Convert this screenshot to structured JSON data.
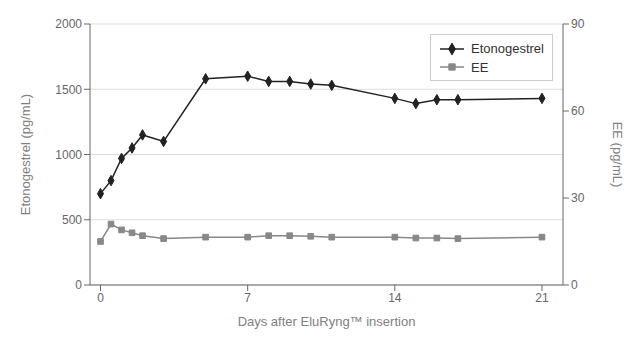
{
  "chart_data": {
    "type": "line",
    "xlabel": "Days after EluRyng™ insertion",
    "ylabel": "Etonogestrel (pg/mL)",
    "y2label": "EE (pg/mL)",
    "x": [
      0,
      0.5,
      1,
      1.5,
      2,
      3,
      5,
      7,
      8,
      9,
      10,
      11,
      14,
      15,
      16,
      17,
      21
    ],
    "series": [
      {
        "name": "Etonogestrel",
        "color": "#222222",
        "marker": "diamond",
        "line_style": "solid",
        "values": [
          700,
          800,
          970,
          1050,
          1150,
          1100,
          1580,
          1600,
          1560,
          1560,
          1540,
          1530,
          1430,
          1390,
          1420,
          1420,
          1430
        ]
      },
      {
        "name": "EE",
        "color": "#888888",
        "marker": "square",
        "line_style": "solid",
        "axis": "y2",
        "values": [
          15,
          21,
          19,
          18,
          17,
          16,
          16.5,
          16.5,
          17,
          17,
          16.8,
          16.5,
          16.5,
          16.2,
          16.2,
          16,
          16.5
        ]
      }
    ],
    "xlim": [
      -0.5,
      22
    ],
    "xticks": [
      0,
      7,
      14,
      21
    ],
    "ylim": [
      0,
      2000
    ],
    "yticks": [
      0,
      500,
      1000,
      1500,
      2000
    ],
    "y2lim": [
      0,
      90
    ],
    "y2ticks": [
      0,
      30,
      60,
      90
    ],
    "grid": true,
    "legend": "upper right"
  }
}
